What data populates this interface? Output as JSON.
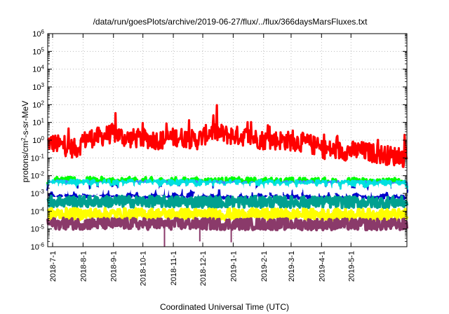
{
  "chart_data": {
    "type": "line",
    "title": "/data/run/goesPlots/archive/2019-06-27/flux/../flux/366daysMarsFluxes.txt",
    "xlabel": "Coordinated Universal Time (UTC)",
    "ylabel_prefix": "protons/cm",
    "ylabel_superscript": "2",
    "ylabel_suffix": "-s-sr-MeV",
    "y_scale": "log",
    "ylim_exponents": [
      -6,
      6
    ],
    "y_tick_labels": [
      {
        "exp": 6,
        "base": "10",
        "sup": "6"
      },
      {
        "exp": 5,
        "base": "10",
        "sup": "5"
      },
      {
        "exp": 4,
        "base": "10",
        "sup": "4"
      },
      {
        "exp": 3,
        "base": "10",
        "sup": "3"
      },
      {
        "exp": 2,
        "base": "10",
        "sup": "2"
      },
      {
        "exp": 1,
        "base": "10",
        "sup": "1"
      },
      {
        "exp": 0,
        "base": "10",
        "sup": "0"
      },
      {
        "exp": -1,
        "base": "10",
        "sup": "-1"
      },
      {
        "exp": -2,
        "base": "10",
        "sup": "-2"
      },
      {
        "exp": -3,
        "base": "10",
        "sup": "-3"
      },
      {
        "exp": -4,
        "base": "10",
        "sup": "-4"
      },
      {
        "exp": -5,
        "base": "10",
        "sup": "-5"
      },
      {
        "exp": -6,
        "base": "10",
        "sup": "-6"
      }
    ],
    "xlim": [
      "2018-06-26",
      "2019-06-27"
    ],
    "x_ticks": [
      "2018-7-1",
      "2018-8-1",
      "2018-9-1",
      "2018-10-1",
      "2018-11-1",
      "2018-12-1",
      "2019-1-1",
      "2019-2-1",
      "2019-3-1",
      "2019-4-1",
      "2019-5-1"
    ],
    "grid": true,
    "legend": "none",
    "series": [
      {
        "color": "#ff0000",
        "baseline_log10": [
          [
            "2018-06-26",
            -0.1
          ],
          [
            "2018-07-10",
            -0.3
          ],
          [
            "2018-07-25",
            -0.5
          ],
          [
            "2018-08-05",
            0.1
          ],
          [
            "2018-08-20",
            0.2
          ],
          [
            "2018-09-01",
            0.4
          ],
          [
            "2018-09-15",
            0.1
          ],
          [
            "2018-10-01",
            0.1
          ],
          [
            "2018-10-20",
            0.0
          ],
          [
            "2018-11-05",
            0.2
          ],
          [
            "2018-11-25",
            0.0
          ],
          [
            "2018-12-10",
            0.5
          ],
          [
            "2018-12-25",
            0.3
          ],
          [
            "2019-01-15",
            0.2
          ],
          [
            "2019-02-01",
            0.0
          ],
          [
            "2019-02-20",
            0.0
          ],
          [
            "2019-03-10",
            -0.1
          ],
          [
            "2019-03-20",
            -0.2
          ],
          [
            "2019-04-01",
            -0.5
          ],
          [
            "2019-04-20",
            -0.6
          ],
          [
            "2019-05-10",
            -0.6
          ],
          [
            "2019-06-01",
            -0.8
          ],
          [
            "2019-06-27",
            -1.0
          ]
        ]
      },
      {
        "color": "#00ff00",
        "baseline_log10": [
          [
            "2018-06-26",
            -2.4
          ],
          [
            "2019-06-27",
            -2.45
          ]
        ]
      },
      {
        "color": "#3d87ff",
        "baseline_log10": [
          [
            "2018-06-26",
            -2.6
          ],
          [
            "2019-06-27",
            -2.65
          ]
        ]
      },
      {
        "color": "#00e0e0",
        "baseline_log10": [
          [
            "2018-06-26",
            -2.55
          ],
          [
            "2019-06-27",
            -2.6
          ]
        ]
      },
      {
        "color": "#0000cc",
        "baseline_log10": [
          [
            "2018-06-26",
            -2.9
          ],
          [
            "2019-06-27",
            -3.0
          ]
        ]
      },
      {
        "color": "#ffffff",
        "baseline_log10": [
          [
            "2018-06-26",
            -2.75
          ],
          [
            "2019-06-27",
            -2.8
          ]
        ]
      },
      {
        "color": "#00a090",
        "baseline_log10": [
          [
            "2018-06-26",
            -3.45
          ],
          [
            "2019-06-27",
            -3.5
          ]
        ]
      },
      {
        "color": "#ffff00",
        "baseline_log10": [
          [
            "2018-06-26",
            -4.15
          ],
          [
            "2019-06-27",
            -4.2
          ]
        ]
      },
      {
        "color": "#8a3a6a",
        "baseline_log10": [
          [
            "2018-06-26",
            -4.7
          ],
          [
            "2019-06-27",
            -4.75
          ]
        ]
      }
    ],
    "dips": [
      {
        "series_color": "#8a3a6a",
        "date": "2018-10-23",
        "min_log10": -6.0
      },
      {
        "series_color": "#8a3a6a",
        "date": "2018-11-28",
        "min_log10": -5.7
      },
      {
        "series_color": "#8a3a6a",
        "date": "2018-12-30",
        "min_log10": -5.75
      }
    ]
  }
}
